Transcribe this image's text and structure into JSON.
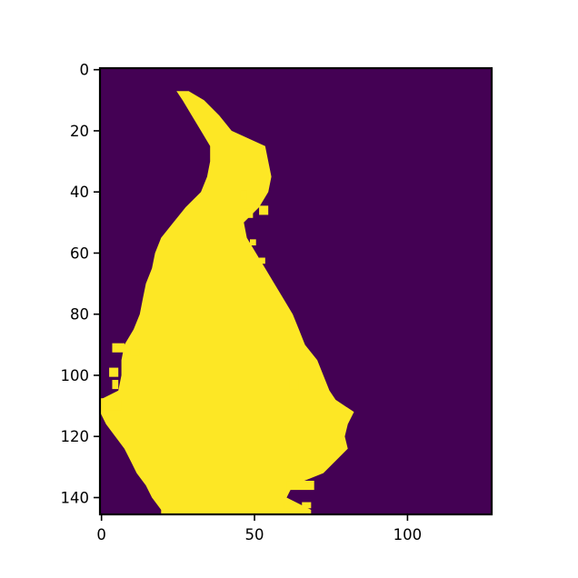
{
  "chart_data": {
    "type": "heatmap",
    "title": "",
    "xlabel": "",
    "ylabel": "",
    "image_shape": [
      146,
      128
    ],
    "xlim": [
      -0.5,
      127.5
    ],
    "ylim": [
      145.5,
      -0.5
    ],
    "x_ticks": [
      0,
      50,
      100
    ],
    "x_tick_labels": [
      "0",
      "50",
      "100"
    ],
    "y_ticks": [
      0,
      20,
      40,
      60,
      80,
      100,
      120,
      140
    ],
    "y_tick_labels": [
      "0",
      "20",
      "40",
      "60",
      "80",
      "100",
      "120",
      "140"
    ],
    "colormap": "viridis",
    "value_colors": {
      "0": "#440154",
      "1": "#fde725"
    },
    "grid": false,
    "mask_shape_profile": [
      {
        "row": 7,
        "x_start": 25,
        "x_end": 28
      },
      {
        "row": 10,
        "x_start": 27,
        "x_end": 33
      },
      {
        "row": 15,
        "x_start": 30,
        "x_end": 38
      },
      {
        "row": 20,
        "x_start": 33,
        "x_end": 42
      },
      {
        "row": 25,
        "x_start": 36,
        "x_end": 53
      },
      {
        "row": 30,
        "x_start": 36,
        "x_end": 54
      },
      {
        "row": 35,
        "x_start": 35,
        "x_end": 55
      },
      {
        "row": 40,
        "x_start": 33,
        "x_end": 54
      },
      {
        "row": 45,
        "x_start": 28,
        "x_end": 51
      },
      {
        "row": 50,
        "x_start": 24,
        "x_end": 46
      },
      {
        "row": 55,
        "x_start": 20,
        "x_end": 47
      },
      {
        "row": 60,
        "x_start": 18,
        "x_end": 50
      },
      {
        "row": 65,
        "x_start": 17,
        "x_end": 53
      },
      {
        "row": 70,
        "x_start": 15,
        "x_end": 56
      },
      {
        "row": 75,
        "x_start": 14,
        "x_end": 59
      },
      {
        "row": 80,
        "x_start": 13,
        "x_end": 62
      },
      {
        "row": 85,
        "x_start": 11,
        "x_end": 64
      },
      {
        "row": 90,
        "x_start": 8,
        "x_end": 66
      },
      {
        "row": 95,
        "x_start": 7,
        "x_end": 70
      },
      {
        "row": 100,
        "x_start": 7,
        "x_end": 72
      },
      {
        "row": 105,
        "x_start": 6,
        "x_end": 74
      },
      {
        "row": 108,
        "x_start": 0,
        "x_end": 76
      },
      {
        "row": 112,
        "x_start": 0,
        "x_end": 82
      },
      {
        "row": 116,
        "x_start": 2,
        "x_end": 80
      },
      {
        "row": 120,
        "x_start": 5,
        "x_end": 79
      },
      {
        "row": 124,
        "x_start": 8,
        "x_end": 80
      },
      {
        "row": 128,
        "x_start": 10,
        "x_end": 76
      },
      {
        "row": 132,
        "x_start": 12,
        "x_end": 72
      },
      {
        "row": 136,
        "x_start": 15,
        "x_end": 62
      },
      {
        "row": 140,
        "x_start": 17,
        "x_end": 60
      },
      {
        "row": 144,
        "x_start": 20,
        "x_end": 68
      }
    ],
    "mask_islands": [
      {
        "x": 46,
        "y": 40,
        "w": 2,
        "h": 3
      },
      {
        "x": 47,
        "y": 46,
        "w": 3,
        "h": 3
      },
      {
        "x": 52,
        "y": 45,
        "w": 3,
        "h": 3
      },
      {
        "x": 49,
        "y": 56,
        "w": 2,
        "h": 2
      },
      {
        "x": 52,
        "y": 62,
        "w": 2,
        "h": 2
      },
      {
        "x": 4,
        "y": 90,
        "w": 4,
        "h": 3
      },
      {
        "x": 10,
        "y": 92,
        "w": 3,
        "h": 2
      },
      {
        "x": 3,
        "y": 98,
        "w": 3,
        "h": 3
      },
      {
        "x": 0,
        "y": 108,
        "w": 7,
        "h": 4
      },
      {
        "x": 4,
        "y": 102,
        "w": 2,
        "h": 3
      },
      {
        "x": 62,
        "y": 102,
        "w": 3,
        "h": 3
      },
      {
        "x": 61,
        "y": 135,
        "w": 9,
        "h": 3
      },
      {
        "x": 60,
        "y": 142,
        "w": 3,
        "h": 2
      },
      {
        "x": 66,
        "y": 142,
        "w": 3,
        "h": 2
      }
    ]
  }
}
